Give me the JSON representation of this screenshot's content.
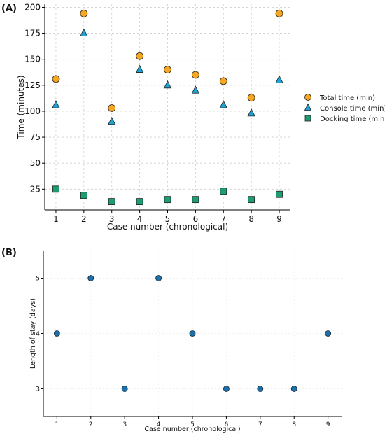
{
  "chart_data": [
    {
      "type": "scatter",
      "panel_label": "(A)",
      "xlabel": "Case number (chronological)",
      "ylabel": "Time (minutes)",
      "x": [
        1,
        2,
        3,
        4,
        5,
        6,
        7,
        8,
        9
      ],
      "xticks": [
        1,
        2,
        3,
        4,
        5,
        6,
        7,
        8,
        9
      ],
      "xlim": [
        0.6,
        9.4
      ],
      "yticks": [
        25,
        50,
        75,
        100,
        125,
        150,
        175,
        200
      ],
      "ylim": [
        5,
        203
      ],
      "grid": true,
      "legend_position": "right",
      "series": [
        {
          "name": "Total time (min)",
          "marker": "circle",
          "color": "#F5A623",
          "values": [
            131,
            194,
            103,
            153,
            140,
            135,
            129,
            113,
            194
          ]
        },
        {
          "name": "Console time (min)",
          "marker": "triangle",
          "color": "#1EA4D4",
          "values": [
            106,
            175,
            90,
            140,
            125,
            120,
            106,
            98,
            130
          ]
        },
        {
          "name": "Docking time (min)",
          "marker": "square",
          "color": "#1E9E6E",
          "values": [
            25,
            19,
            13,
            13,
            15,
            15,
            23,
            15,
            20
          ]
        }
      ]
    },
    {
      "type": "scatter",
      "panel_label": "(B)",
      "xlabel": "Case number (chronological)",
      "ylabel": "Length of stay (days)",
      "x": [
        1,
        2,
        3,
        4,
        5,
        6,
        7,
        8,
        9
      ],
      "xticks": [
        1,
        2,
        3,
        4,
        5,
        6,
        7,
        8,
        9
      ],
      "xlim": [
        0.6,
        9.4
      ],
      "yticks": [
        3,
        4,
        5
      ],
      "ylim": [
        2.5,
        5.5
      ],
      "grid": true,
      "series": [
        {
          "marker": "circle",
          "color": "#1F6FA8",
          "values": [
            4,
            5,
            3,
            5,
            4,
            3,
            3,
            3,
            4
          ]
        }
      ]
    }
  ]
}
